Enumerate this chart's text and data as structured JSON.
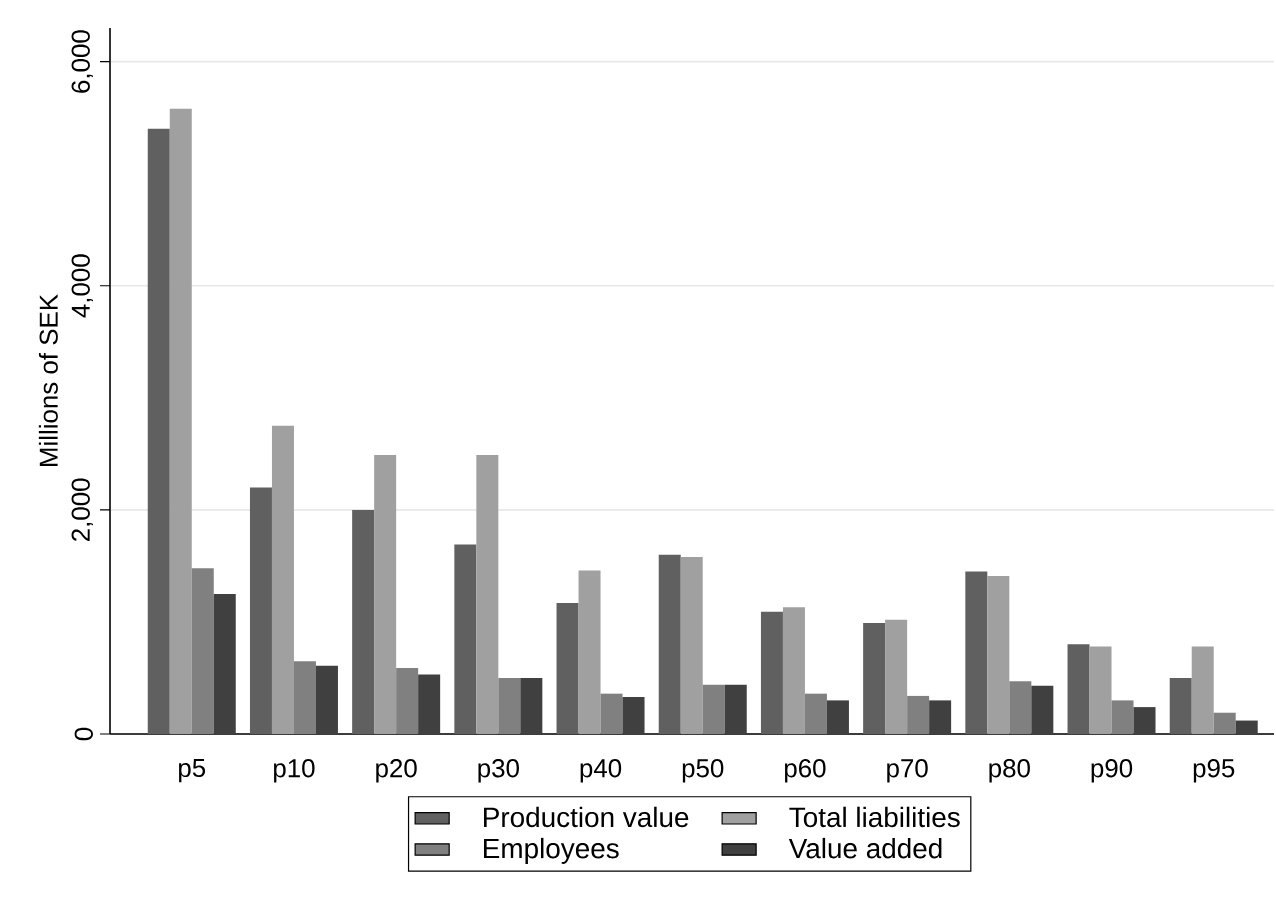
{
  "chart_data": {
    "type": "bar",
    "ylabel": "Millions of SEK",
    "categories": [
      "p5",
      "p10",
      "p20",
      "p30",
      "p40",
      "p50",
      "p60",
      "p70",
      "p80",
      "p90",
      "p95"
    ],
    "series": [
      {
        "name": "Production value",
        "color": "#606060",
        "values": [
          5400,
          2200,
          2000,
          1690,
          1170,
          1600,
          1090,
          990,
          1450,
          800,
          500
        ]
      },
      {
        "name": "Total liabilities",
        "color": "#a0a0a0",
        "values": [
          5580,
          2750,
          2490,
          2490,
          1460,
          1580,
          1130,
          1020,
          1410,
          780,
          780
        ]
      },
      {
        "name": "Employees",
        "color": "#808080",
        "values": [
          1480,
          650,
          590,
          500,
          360,
          440,
          360,
          340,
          470,
          300,
          190
        ]
      },
      {
        "name": "Value added",
        "color": "#404040",
        "values": [
          1250,
          610,
          530,
          500,
          330,
          440,
          300,
          300,
          430,
          240,
          120
        ]
      }
    ],
    "ylim": [
      0,
      6300
    ],
    "yticks": [
      0,
      {
        "value": 2000,
        "label": "2,000"
      },
      {
        "value": 4000,
        "label": "4,000"
      },
      {
        "value": 6000,
        "label": "6,000"
      }
    ],
    "grid": "y",
    "legend": "bottom"
  }
}
